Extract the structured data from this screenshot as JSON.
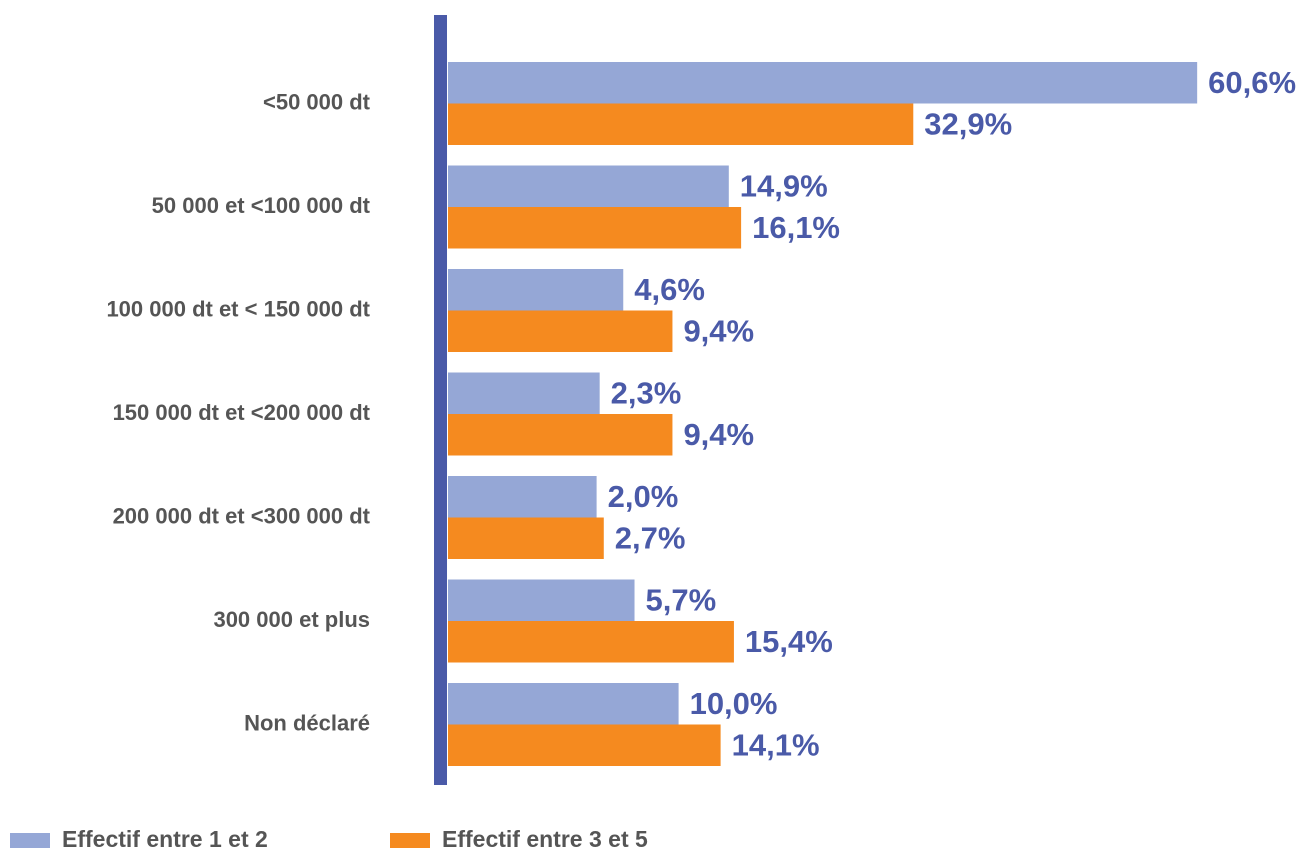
{
  "chart_data": {
    "type": "bar",
    "orientation": "horizontal",
    "categories": [
      "<50 000 dt",
      "50 000 et <100 000 dt",
      "100 000 dt et < 150 000 dt",
      "150 000 dt et <200 000 dt",
      "200 000 dt et <300 000 dt",
      "300 000 et plus",
      "Non déclaré"
    ],
    "series": [
      {
        "name": "Effectif entre 1 et 2",
        "color": "#95a7d6",
        "values": [
          60.6,
          14.9,
          4.6,
          2.3,
          2.0,
          5.7,
          10.0
        ],
        "value_labels": [
          "60,6%",
          "14,9%",
          "4,6%",
          "2,3%",
          "2,0%",
          "5,7%",
          "10,0%"
        ]
      },
      {
        "name": "Effectif entre 3 et 5",
        "color": "#f58a1f",
        "values": [
          32.9,
          16.1,
          9.4,
          9.4,
          2.7,
          15.4,
          14.1
        ],
        "value_labels": [
          "32,9%",
          "16,1%",
          "9,4%",
          "9,4%",
          "2,7%",
          "15,4%",
          "14,1%"
        ]
      }
    ],
    "xlim": [
      -12.5,
      72
    ],
    "axis_color": "#4a5aa8",
    "label_color": "#4a5aa8",
    "legend": "bottom-left"
  }
}
